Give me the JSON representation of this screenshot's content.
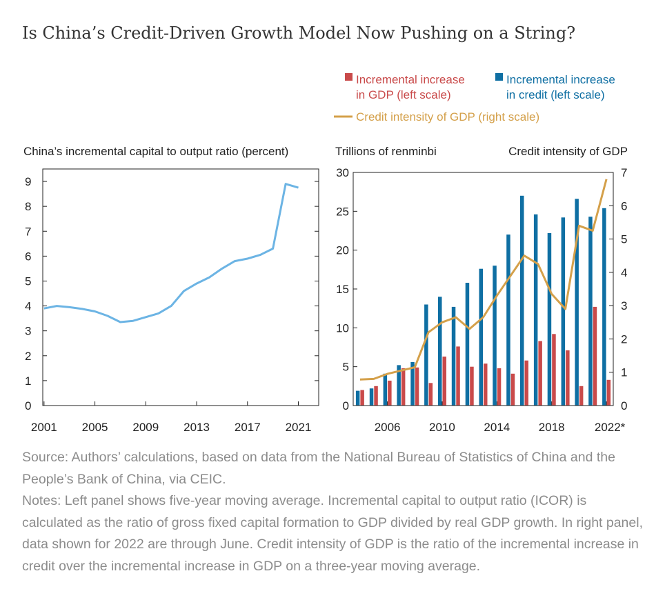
{
  "title": "Is China’s Credit-Driven Growth Model Now Pushing on a String?",
  "legend": {
    "gdp_line1": "Incremental increase",
    "gdp_line2": "in GDP (left scale)",
    "credit_line1": "Incremental increase",
    "credit_line2": "in credit (left scale)",
    "intensity": "Credit intensity of GDP (right scale)"
  },
  "colors": {
    "icor_line": "#6cb4e4",
    "gdp_bar": "#c94a4a",
    "credit_bar": "#0f6fa3",
    "intensity_line": "#d4a04a",
    "axis": "#222222",
    "source_text": "#8c8c8c"
  },
  "chart_data": [
    {
      "type": "line",
      "title": "China’s incremental capital to output ratio (percent)",
      "x": [
        2001,
        2002,
        2003,
        2004,
        2005,
        2006,
        2007,
        2008,
        2009,
        2010,
        2011,
        2012,
        2013,
        2014,
        2015,
        2016,
        2017,
        2018,
        2019,
        2020,
        2021
      ],
      "series": [
        {
          "values": [
            3.9,
            4.0,
            3.95,
            3.88,
            3.78,
            3.6,
            3.35,
            3.4,
            3.55,
            3.7,
            4.0,
            4.6,
            4.9,
            5.15,
            5.5,
            5.8,
            5.9,
            6.05,
            6.3,
            8.9,
            8.75
          ]
        }
      ],
      "xticks": [
        "2001",
        "2005",
        "2009",
        "2013",
        "2017",
        "2021"
      ],
      "yticks": [
        "0",
        "1",
        "2",
        "3",
        "4",
        "5",
        "6",
        "7",
        "8",
        "9"
      ],
      "ylim": [
        0,
        9.5
      ]
    },
    {
      "type": "bar",
      "left_label": "Trillions of renminbi",
      "right_label": "Credit intensity of GDP",
      "categories": [
        "2004",
        "2005",
        "2006",
        "2007",
        "2008",
        "2009",
        "2010",
        "2011",
        "2012",
        "2013",
        "2014",
        "2015",
        "2016",
        "2017",
        "2018",
        "2019",
        "2020",
        "2021",
        "2022*"
      ],
      "series": [
        {
          "name": "Incremental increase in GDP (left scale)",
          "values": [
            2.0,
            2.5,
            3.2,
            4.8,
            4.9,
            2.9,
            6.3,
            7.6,
            5.0,
            5.4,
            4.8,
            4.1,
            5.8,
            8.3,
            9.2,
            7.1,
            2.5,
            12.7,
            3.3
          ]
        },
        {
          "name": "Incremental increase in credit (left scale)",
          "values": [
            1.9,
            2.2,
            4.1,
            5.2,
            5.6,
            13.0,
            14.0,
            12.7,
            15.8,
            17.6,
            18.0,
            22.0,
            27.0,
            24.6,
            22.2,
            24.2,
            26.6,
            24.3,
            25.4
          ]
        },
        {
          "name": "Credit intensity of GDP (right scale)",
          "axis": "right",
          "values": [
            0.78,
            0.8,
            0.95,
            1.05,
            1.15,
            2.2,
            2.5,
            2.65,
            2.3,
            2.65,
            3.3,
            3.9,
            4.5,
            4.25,
            3.35,
            2.9,
            5.4,
            5.25,
            6.8
          ]
        }
      ],
      "xticks": [
        "2006",
        "2010",
        "2014",
        "2018",
        "2022*"
      ],
      "yticks_left": [
        "0",
        "5",
        "10",
        "15",
        "20",
        "25",
        "30"
      ],
      "yticks_right": [
        "0",
        "1",
        "2",
        "3",
        "4",
        "5",
        "6",
        "7"
      ],
      "ylim_left": [
        0,
        30
      ],
      "ylim_right": [
        0,
        7
      ]
    }
  ],
  "source_text": "Source: Authors’ calculations, based on data from the National Bureau of Statistics of China and the People’s Bank of China, via CEIC.",
  "notes_text": "Notes: Left panel shows five-year moving average. Incremental capital to output ratio (ICOR) is calculated as the ratio of gross fixed capital formation to GDP divided by real GDP growth. In right panel, data shown for 2022 are through June. Credit intensity of GDP is the ratio of the incremental increase in credit over the incremental increase in GDP on a three-year moving average."
}
